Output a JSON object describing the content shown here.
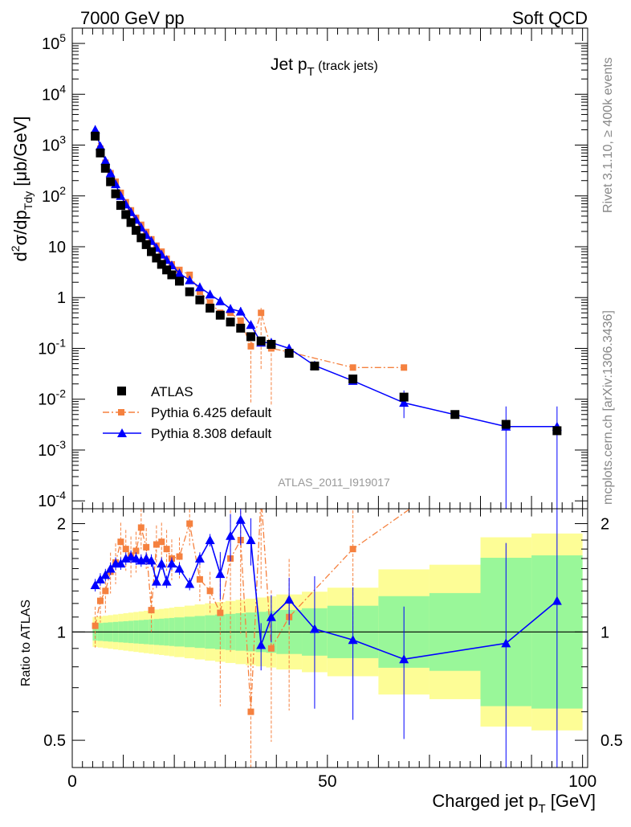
{
  "header": {
    "left": "7000 GeV pp",
    "right": "Soft QCD"
  },
  "side_labels": {
    "rivet": "Rivet 3.1.10, ≥ 400k events",
    "mcplots": "mcplots.cern.ch [arXiv:1306.3436]"
  },
  "main_title": {
    "base": "Jet p",
    "sub": "T",
    "suffix": " (track jets)"
  },
  "analysis_label": "ATLAS_2011_I919017",
  "legend": {
    "data": "ATLAS",
    "pythia6": "Pythia 6.425 default",
    "pythia8": "Pythia 8.308 default"
  },
  "colors": {
    "data": "#000000",
    "pythia6": "#f5813f",
    "pythia8": "#0000ff",
    "band_outer": "#fdfd96",
    "band_inner": "#99f799"
  },
  "chart_data": [
    {
      "type": "scatter",
      "panel": "main",
      "ylabel_parts": [
        "d",
        "2",
        "σ/dp",
        "Tdy",
        " [μb/GeV]"
      ],
      "xlim": [
        0,
        101
      ],
      "ylim": [
        7e-05,
        200000
      ],
      "yscale": "log",
      "ytick_labels": [
        "10^-4",
        "10^-3",
        "10^-2",
        "10^-1",
        "1",
        "10",
        "10^2",
        "10^3",
        "10^4",
        "10^5"
      ],
      "series": [
        {
          "name": "ATLAS",
          "x": [
            4.5,
            5.5,
            6.5,
            7.5,
            8.5,
            9.5,
            10.5,
            11.5,
            12.5,
            13.5,
            14.5,
            15.5,
            16.5,
            17.5,
            18.5,
            19.5,
            21,
            23,
            25,
            27,
            29,
            31,
            33,
            35,
            37,
            39,
            42.5,
            47.5,
            55,
            65,
            75,
            85,
            95
          ],
          "y": [
            1500,
            700,
            350,
            190,
            110,
            65,
            43,
            30,
            21,
            15,
            11,
            8,
            6,
            4.5,
            3.5,
            2.8,
            2.1,
            1.3,
            0.9,
            0.62,
            0.45,
            0.33,
            0.25,
            0.17,
            0.14,
            0.12,
            0.08,
            0.045,
            0.025,
            0.011,
            0.005,
            0.0032,
            0.0024
          ]
        },
        {
          "name": "Pythia 6.425 default",
          "x": [
            4.5,
            5.5,
            6.5,
            7.5,
            8.5,
            9.5,
            10.5,
            11.5,
            12.5,
            13.5,
            14.5,
            15.5,
            16.5,
            17.5,
            18.5,
            19.5,
            21,
            23,
            25,
            27,
            29,
            31,
            33,
            35,
            37,
            39,
            42.5,
            55,
            65
          ],
          "y": [
            1600,
            850,
            450,
            280,
            190,
            115,
            75,
            52,
            37,
            27,
            19.5,
            14,
            10.5,
            8,
            5.8,
            4.5,
            3.5,
            2.8,
            1.3,
            0.8,
            0.5,
            0.5,
            0.35,
            0.11,
            0.5,
            0.1,
            0.085,
            0.042,
            0.042
          ]
        },
        {
          "name": "Pythia 8.308 default",
          "x": [
            4.5,
            5.5,
            6.5,
            7.5,
            8.5,
            9.5,
            10.5,
            11.5,
            12.5,
            13.5,
            14.5,
            15.5,
            16.5,
            17.5,
            18.5,
            19.5,
            21,
            23,
            25,
            27,
            29,
            31,
            33,
            35,
            37,
            39,
            42.5,
            47.5,
            55,
            65,
            85,
            95
          ],
          "y": [
            2000,
            950,
            490,
            280,
            170,
            100,
            68,
            48,
            34,
            24,
            17,
            13,
            9.5,
            7,
            5.5,
            4.3,
            3,
            2.2,
            1.6,
            1.15,
            0.85,
            0.6,
            0.53,
            0.29,
            0.13,
            0.13,
            0.1,
            0.046,
            0.023,
            0.0085,
            0.0029,
            0.0029
          ]
        }
      ]
    },
    {
      "type": "line",
      "panel": "ratio",
      "ylabel": "Ratio to ATLAS",
      "xlabel_parts": [
        "Charged jet p",
        "T",
        " [GeV]"
      ],
      "xlim": [
        0,
        101
      ],
      "ylim": [
        0.42,
        2.2
      ],
      "yscale": "log",
      "xtick_labels": [
        "0",
        "50",
        "100"
      ],
      "ytick_labels": [
        "0.5",
        "1",
        "2"
      ],
      "series": [
        {
          "name": "Pythia 6.425 default",
          "x": [
            4.5,
            5.5,
            6.5,
            7.5,
            8.5,
            9.5,
            10.5,
            11.5,
            12.5,
            13.5,
            14.5,
            15.5,
            16.5,
            17.5,
            18.5,
            19.5,
            21,
            23,
            25,
            27,
            29,
            31,
            33,
            35,
            37,
            39,
            42.5,
            55
          ],
          "y": [
            1.04,
            1.22,
            1.3,
            1.47,
            1.56,
            1.78,
            1.7,
            1.63,
            1.68,
            1.95,
            1.72,
            1.15,
            1.75,
            1.78,
            1.7,
            1.6,
            1.62,
            2.0,
            1.4,
            1.3,
            1.13,
            1.6,
            1.8,
            0.6,
            2.4,
            0.9,
            1.1,
            1.7
          ]
        },
        {
          "name": "Pythia 8.308 default",
          "x": [
            4.5,
            5.5,
            6.5,
            7.5,
            8.5,
            9.5,
            10.5,
            11.5,
            12.5,
            13.5,
            14.5,
            15.5,
            16.5,
            17.5,
            18.5,
            19.5,
            21,
            23,
            25,
            27,
            29,
            31,
            33,
            35,
            37,
            39,
            42.5,
            47.5,
            55,
            65,
            85,
            95
          ],
          "y": [
            1.35,
            1.4,
            1.44,
            1.5,
            1.55,
            1.55,
            1.6,
            1.62,
            1.6,
            1.58,
            1.6,
            1.58,
            1.38,
            1.55,
            1.38,
            1.55,
            1.5,
            1.36,
            1.6,
            1.8,
            1.45,
            1.85,
            2.05,
            1.8,
            0.92,
            1.1,
            1.23,
            1.02,
            0.95,
            0.84,
            0.93,
            1.22
          ]
        }
      ]
    }
  ]
}
